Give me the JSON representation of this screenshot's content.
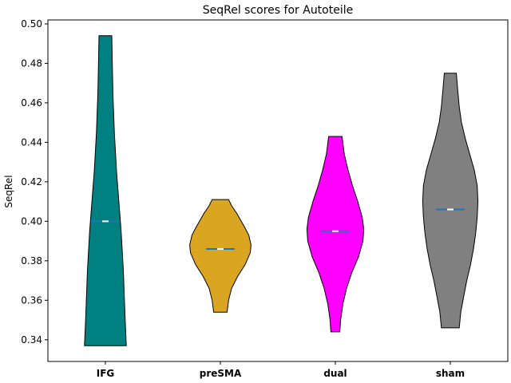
{
  "chart_data": {
    "type": "violin",
    "title": "SeqRel scores for Autoteile",
    "xlabel": "",
    "ylabel": "SeqRel",
    "ylim": [
      0.329,
      0.502
    ],
    "yticks": [
      "0.34",
      "0.36",
      "0.38",
      "0.40",
      "0.42",
      "0.44",
      "0.46",
      "0.48",
      "0.50"
    ],
    "grid": false,
    "categories": [
      "IFG",
      "preSMA",
      "dual",
      "sham"
    ],
    "series": [
      {
        "category": "IFG",
        "color": "#008080",
        "min": 0.337,
        "max": 0.494,
        "median": 0.4,
        "profile": [
          [
            0.337,
            0.56
          ],
          [
            0.345,
            0.54
          ],
          [
            0.355,
            0.52
          ],
          [
            0.365,
            0.5
          ],
          [
            0.375,
            0.48
          ],
          [
            0.385,
            0.45
          ],
          [
            0.395,
            0.42
          ],
          [
            0.405,
            0.38
          ],
          [
            0.415,
            0.34
          ],
          [
            0.425,
            0.3
          ],
          [
            0.435,
            0.27
          ],
          [
            0.445,
            0.24
          ],
          [
            0.455,
            0.22
          ],
          [
            0.465,
            0.2
          ],
          [
            0.475,
            0.19
          ],
          [
            0.485,
            0.18
          ],
          [
            0.494,
            0.17
          ]
        ]
      },
      {
        "category": "preSMA",
        "color": "#DAA520",
        "min": 0.354,
        "max": 0.411,
        "median": 0.386,
        "profile": [
          [
            0.354,
            0.18
          ],
          [
            0.36,
            0.22
          ],
          [
            0.366,
            0.3
          ],
          [
            0.372,
            0.46
          ],
          [
            0.378,
            0.66
          ],
          [
            0.384,
            0.8
          ],
          [
            0.388,
            0.82
          ],
          [
            0.393,
            0.76
          ],
          [
            0.398,
            0.62
          ],
          [
            0.404,
            0.44
          ],
          [
            0.408,
            0.3
          ],
          [
            0.411,
            0.22
          ]
        ]
      },
      {
        "category": "dual",
        "color": "#FF00FF",
        "min": 0.344,
        "max": 0.443,
        "median": 0.395,
        "profile": [
          [
            0.344,
            0.12
          ],
          [
            0.35,
            0.14
          ],
          [
            0.358,
            0.2
          ],
          [
            0.366,
            0.3
          ],
          [
            0.374,
            0.44
          ],
          [
            0.382,
            0.62
          ],
          [
            0.39,
            0.74
          ],
          [
            0.396,
            0.76
          ],
          [
            0.402,
            0.72
          ],
          [
            0.41,
            0.6
          ],
          [
            0.418,
            0.46
          ],
          [
            0.426,
            0.34
          ],
          [
            0.434,
            0.24
          ],
          [
            0.443,
            0.18
          ]
        ]
      },
      {
        "category": "sham",
        "color": "#808080",
        "min": 0.346,
        "max": 0.475,
        "median": 0.406,
        "profile": [
          [
            0.346,
            0.24
          ],
          [
            0.354,
            0.28
          ],
          [
            0.362,
            0.36
          ],
          [
            0.37,
            0.44
          ],
          [
            0.378,
            0.54
          ],
          [
            0.386,
            0.62
          ],
          [
            0.394,
            0.68
          ],
          [
            0.402,
            0.72
          ],
          [
            0.41,
            0.74
          ],
          [
            0.418,
            0.72
          ],
          [
            0.426,
            0.64
          ],
          [
            0.434,
            0.52
          ],
          [
            0.442,
            0.4
          ],
          [
            0.45,
            0.3
          ],
          [
            0.458,
            0.24
          ],
          [
            0.466,
            0.2
          ],
          [
            0.475,
            0.16
          ]
        ]
      }
    ]
  }
}
